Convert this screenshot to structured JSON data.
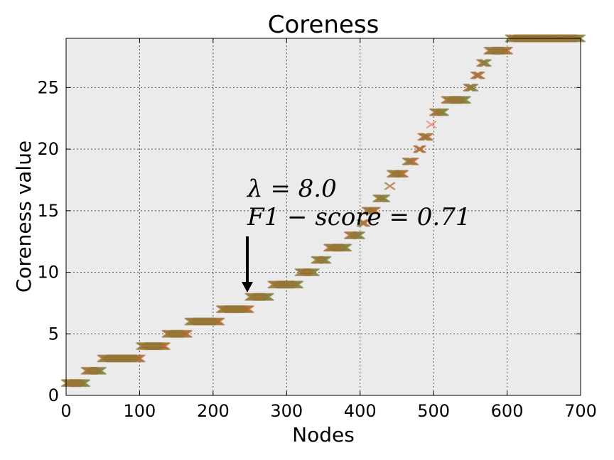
{
  "chart_data": {
    "type": "scatter",
    "title": "Coreness",
    "xlabel": "Nodes",
    "ylabel": "Coreness value",
    "xlim": [
      0,
      700
    ],
    "ylim": [
      0,
      29
    ],
    "xticks": [
      0,
      100,
      200,
      300,
      400,
      500,
      600,
      700
    ],
    "yticks": [
      0,
      5,
      10,
      15,
      20,
      25
    ],
    "grid": true,
    "annotation": {
      "line1": "λ = 8.0",
      "line2": "F1 − score = 0.71",
      "arrow_target": {
        "x": 247,
        "y": 8
      }
    },
    "steps": [
      {
        "x_start": 0,
        "x_end": 26,
        "y": 1
      },
      {
        "x_start": 27,
        "x_end": 48,
        "y": 2
      },
      {
        "x_start": 49,
        "x_end": 101,
        "y": 3
      },
      {
        "x_start": 102,
        "x_end": 135,
        "y": 4
      },
      {
        "x_start": 137,
        "x_end": 165,
        "y": 5
      },
      {
        "x_start": 168,
        "x_end": 209,
        "y": 6
      },
      {
        "x_start": 211,
        "x_end": 249,
        "y": 7
      },
      {
        "x_start": 250,
        "x_end": 276,
        "y": 8
      },
      {
        "x_start": 281,
        "x_end": 316,
        "y": 9
      },
      {
        "x_start": 318,
        "x_end": 338,
        "y": 10
      },
      {
        "x_start": 340,
        "x_end": 354,
        "y": 11
      },
      {
        "x_start": 357,
        "x_end": 382,
        "y": 12
      },
      {
        "x_start": 385,
        "x_end": 400,
        "y": 13
      },
      {
        "x_start": 402,
        "x_end": 407,
        "y": 14
      },
      {
        "x_start": 409,
        "x_end": 421,
        "y": 15
      },
      {
        "x_start": 424,
        "x_end": 434,
        "y": 16
      },
      {
        "x_start": 440,
        "x_end": 441,
        "y": 17
      },
      {
        "x_start": 443,
        "x_end": 459,
        "y": 18
      },
      {
        "x_start": 464,
        "x_end": 473,
        "y": 19
      },
      {
        "x_start": 479,
        "x_end": 483,
        "y": 20
      },
      {
        "x_start": 485,
        "x_end": 493,
        "y": 21
      },
      {
        "x_start": 497,
        "x_end": 497,
        "y": 22
      },
      {
        "x_start": 501,
        "x_end": 514,
        "y": 23
      },
      {
        "x_start": 517,
        "x_end": 544,
        "y": 24
      },
      {
        "x_start": 547,
        "x_end": 554,
        "y": 25
      },
      {
        "x_start": 557,
        "x_end": 563,
        "y": 26
      },
      {
        "x_start": 565,
        "x_end": 572,
        "y": 27
      },
      {
        "x_start": 575,
        "x_end": 601,
        "y": 28
      },
      {
        "x_start": 604,
        "x_end": 700,
        "y": 29
      }
    ]
  }
}
